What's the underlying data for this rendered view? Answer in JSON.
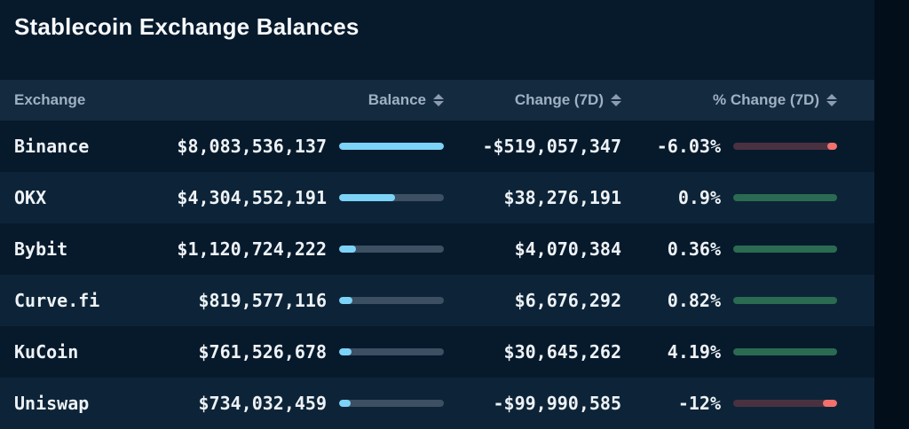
{
  "title": "Stablecoin Exchange Balances",
  "header": {
    "exchange": "Exchange",
    "balance": "Balance",
    "change": "Change (7D)",
    "pct_change": "% Change (7D)"
  },
  "table": {
    "rows": [
      {
        "exchange": "Binance",
        "balance": "$8,083,536,137",
        "balance_num": 8083536137,
        "balance_fill_pct": 100,
        "change": "-$519,057,347",
        "change_num": -519057347,
        "pct_change": "-6.03%",
        "pct_change_num": -6.03,
        "trend": "negative",
        "neg_cap_pct": 9
      },
      {
        "exchange": "OKX",
        "balance": "$4,304,552,191",
        "balance_num": 4304552191,
        "balance_fill_pct": 53,
        "change": "$38,276,191",
        "change_num": 38276191,
        "pct_change": "0.9%",
        "pct_change_num": 0.9,
        "trend": "positive"
      },
      {
        "exchange": "Bybit",
        "balance": "$1,120,724,222",
        "balance_num": 1120724222,
        "balance_fill_pct": 16,
        "change": "$4,070,384",
        "change_num": 4070384,
        "pct_change": "0.36%",
        "pct_change_num": 0.36,
        "trend": "positive"
      },
      {
        "exchange": "Curve.fi",
        "balance": "$819,577,116",
        "balance_num": 819577116,
        "balance_fill_pct": 13,
        "change": "$6,676,292",
        "change_num": 6676292,
        "pct_change": "0.82%",
        "pct_change_num": 0.82,
        "trend": "positive"
      },
      {
        "exchange": "KuCoin",
        "balance": "$761,526,678",
        "balance_num": 761526678,
        "balance_fill_pct": 12,
        "change": "$30,645,262",
        "change_num": 30645262,
        "pct_change": "4.19%",
        "pct_change_num": 4.19,
        "trend": "positive"
      },
      {
        "exchange": "Uniswap",
        "balance": "$734,032,459",
        "balance_num": 734032459,
        "balance_fill_pct": 11,
        "change": "-$99,990,585",
        "change_num": -99990585,
        "pct_change": "-12%",
        "pct_change_num": -12,
        "trend": "negative",
        "neg_cap_pct": 14
      }
    ]
  },
  "colors": {
    "bg_page": "#030e1b",
    "bg_panel": "#071a2c",
    "bg_row_alt": "#0d2438",
    "bg_header": "#142a3f",
    "text_primary": "#eef2f6",
    "text_header": "#9fb1c3",
    "bar_track": "#3c4f63",
    "bar_fill_blue": "#7cd3f7",
    "positive_green": "#2b6b51",
    "negative_track": "#4a3140",
    "negative_accent": "#f1716d",
    "sort_arrow": "#8a9cb0"
  }
}
